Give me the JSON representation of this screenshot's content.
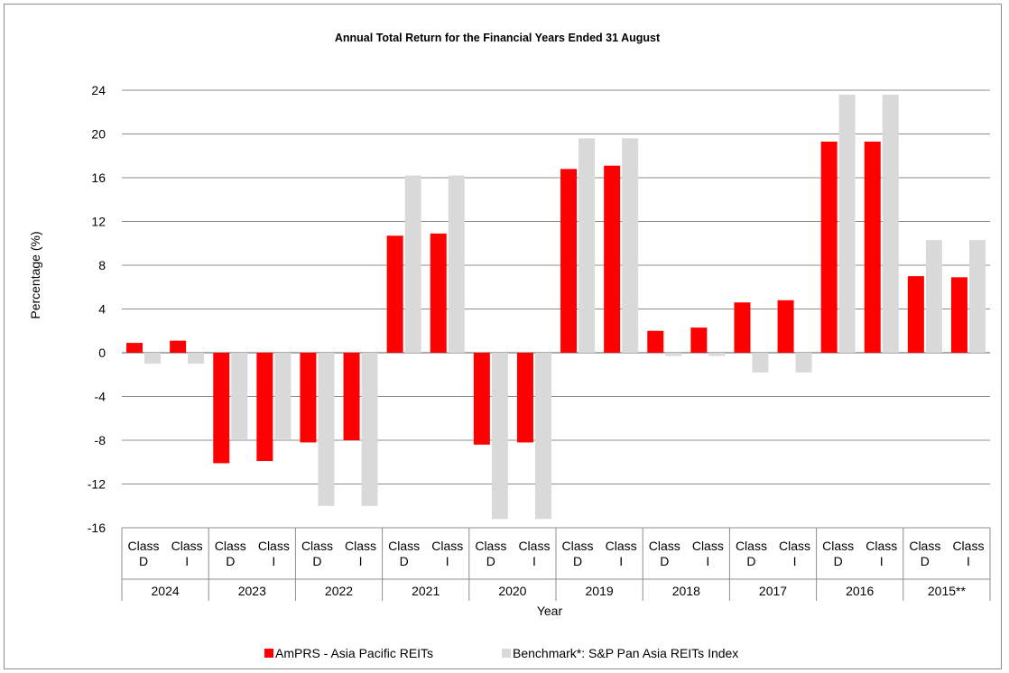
{
  "chart_data": {
    "type": "bar",
    "title": "Annual Total Return for the Financial Years Ended 31 August",
    "xlabel": "Year",
    "ylabel": "Percentage (%)",
    "ylim": [
      -16,
      24
    ],
    "yticks": [
      24,
      20,
      16,
      12,
      8,
      4,
      0,
      -4,
      -8,
      -12,
      -16
    ],
    "grid": true,
    "legend_position": "bottom",
    "groups": [
      "2024",
      "2023",
      "2022",
      "2021",
      "2020",
      "2019",
      "2018",
      "2017",
      "2016",
      "2015**"
    ],
    "classes": [
      {
        "line1": "Class",
        "line2": "D"
      },
      {
        "line1": "Class",
        "line2": "I"
      }
    ],
    "series": [
      {
        "name": "AmPRS - Asia Pacific REITs",
        "color": "#ff0000",
        "values": [
          0.9,
          1.1,
          -10.1,
          -9.9,
          -8.2,
          -8.0,
          10.7,
          10.9,
          -8.4,
          -8.2,
          16.8,
          17.1,
          2.0,
          2.3,
          4.6,
          4.8,
          19.3,
          19.3,
          7.0,
          6.9
        ]
      },
      {
        "name": "Benchmark*: S&P Pan Asia REITs Index",
        "color": "#d9d9d9",
        "values": [
          -1.0,
          -1.0,
          -7.9,
          -7.9,
          -14.0,
          -14.0,
          16.2,
          16.2,
          -15.2,
          -15.2,
          19.6,
          19.6,
          -0.3,
          -0.3,
          -1.8,
          -1.8,
          23.6,
          23.6,
          10.3,
          10.3
        ]
      }
    ]
  }
}
